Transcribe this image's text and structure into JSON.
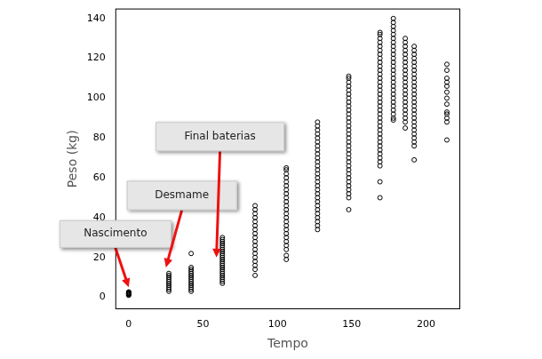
{
  "chart_data": {
    "type": "scatter",
    "x_label": "Tempo",
    "y_label": "Peso (kg)",
    "color": "#000000",
    "marker": "circle",
    "grid": false,
    "x": [
      0,
      27,
      42,
      63,
      85,
      106,
      127,
      148,
      169,
      178,
      186,
      192,
      214
    ],
    "values": [
      [
        1.0,
        1.3,
        1.5,
        1.7,
        1.9,
        2.1,
        2.3,
        2.5,
        2.7
      ],
      [
        3,
        4,
        5,
        6,
        7,
        8,
        9,
        10,
        11,
        12
      ],
      [
        3,
        4,
        5,
        6,
        7,
        8,
        9,
        10,
        11,
        12,
        13,
        14,
        15,
        22
      ],
      [
        7,
        8,
        9,
        10,
        11,
        12,
        13,
        14,
        15,
        16,
        17,
        18,
        19,
        20,
        21,
        22,
        23,
        24,
        25,
        26,
        27,
        28,
        29,
        30
      ],
      [
        11,
        14,
        16,
        18,
        20,
        22,
        24,
        26,
        28,
        30,
        32,
        34,
        36,
        38,
        40,
        42,
        44,
        46
      ],
      [
        19,
        21,
        24,
        26,
        28,
        30,
        32,
        34,
        36,
        38,
        40,
        42,
        44,
        46,
        48,
        50,
        52,
        54,
        56,
        58,
        60,
        62,
        64,
        65
      ],
      [
        34,
        36,
        38,
        40,
        42,
        44,
        46,
        48,
        50,
        52,
        54,
        56,
        58,
        60,
        62,
        64,
        66,
        68,
        70,
        72,
        74,
        76,
        78,
        80,
        82,
        84,
        86,
        88
      ],
      [
        44,
        50,
        52,
        54,
        56,
        58,
        60,
        62,
        64,
        66,
        68,
        70,
        72,
        74,
        76,
        78,
        80,
        82,
        84,
        86,
        88,
        90,
        92,
        94,
        96,
        98,
        100,
        102,
        104,
        106,
        108,
        110,
        111
      ],
      [
        50,
        58,
        66,
        68,
        70,
        72,
        74,
        76,
        78,
        80,
        82,
        84,
        86,
        88,
        90,
        92,
        94,
        96,
        98,
        100,
        102,
        104,
        106,
        108,
        110,
        112,
        114,
        116,
        118,
        120,
        122,
        124,
        126,
        128,
        130,
        132,
        133
      ],
      [
        89,
        90,
        92,
        94,
        96,
        98,
        100,
        102,
        104,
        106,
        108,
        110,
        112,
        114,
        116,
        118,
        120,
        122,
        124,
        126,
        128,
        130,
        132,
        134,
        136,
        138,
        140
      ],
      [
        85,
        88,
        90,
        92,
        94,
        96,
        98,
        100,
        102,
        104,
        106,
        108,
        110,
        112,
        114,
        116,
        118,
        120,
        122,
        124,
        126,
        128,
        130
      ],
      [
        69,
        76,
        78,
        80,
        82,
        84,
        86,
        88,
        90,
        92,
        94,
        96,
        98,
        100,
        102,
        104,
        106,
        108,
        110,
        112,
        114,
        116,
        118,
        120,
        122,
        124,
        126
      ],
      [
        79,
        88,
        90,
        92,
        93,
        97,
        100,
        103,
        106,
        108,
        110,
        114,
        117
      ]
    ],
    "xlim": [
      -9,
      223
    ],
    "xticks": [
      0,
      50,
      100,
      150,
      200
    ],
    "ylim": [
      -6,
      145
    ],
    "yticks": [
      0,
      20,
      40,
      60,
      80,
      100,
      120,
      140
    ],
    "annotations": [
      {
        "text": "Nascimento",
        "x": 0,
        "y": 5
      },
      {
        "text": "Desmame",
        "x": 25,
        "y": 15
      },
      {
        "text": "Final baterias",
        "x": 59,
        "y": 20
      }
    ]
  }
}
